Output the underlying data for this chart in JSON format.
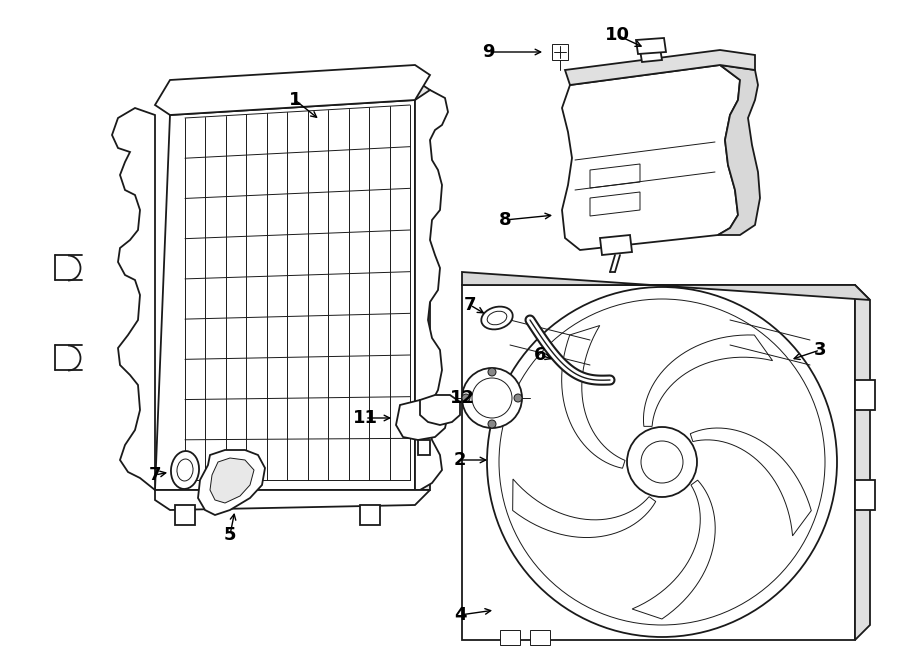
{
  "bg_color": "#ffffff",
  "line_color": "#1a1a1a",
  "lw": 1.3,
  "lw_thin": 0.7,
  "label_fontsize": 13,
  "fig_w": 9.0,
  "fig_h": 6.61,
  "dpi": 100
}
